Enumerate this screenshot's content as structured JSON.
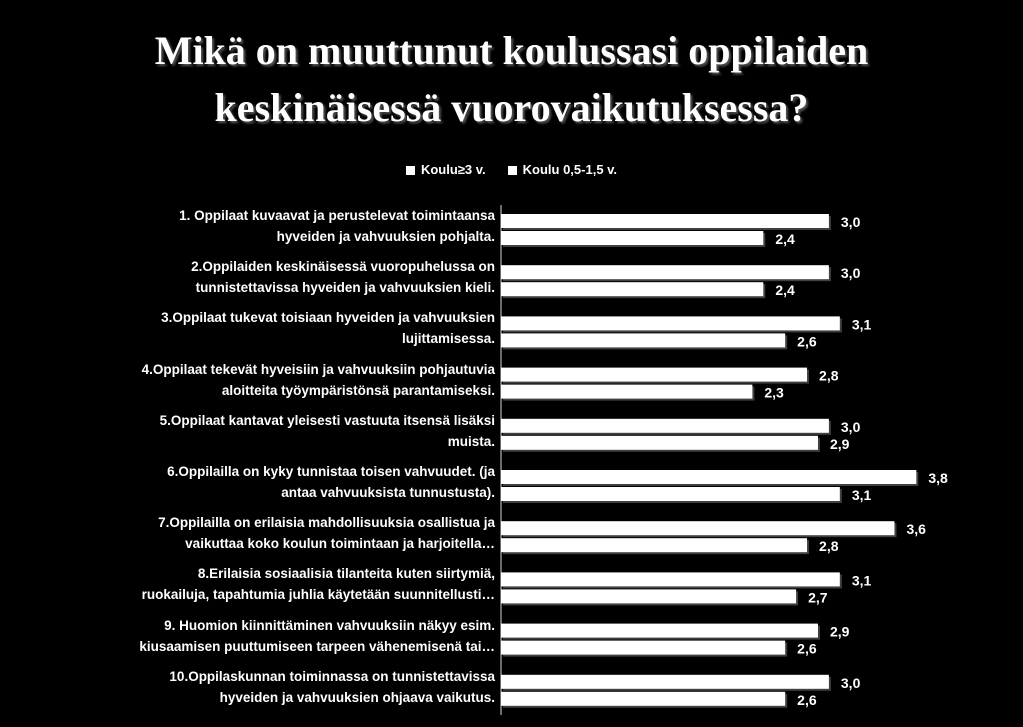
{
  "title_lines": [
    "Mikä on muuttunut koulussasi oppilaiden",
    "keskinäisessä vuorovaikutuksessa?"
  ],
  "chart_data": {
    "type": "bar",
    "orientation": "horizontal",
    "title": "Mikä on muuttunut koulussasi oppilaiden keskinäisessä vuorovaikutuksessa?",
    "legend_position": "top",
    "grid": false,
    "xlim": [
      0,
      4
    ],
    "categories": [
      [
        "1. Oppilaat kuvaavat ja perustelevat toimintaansa",
        "hyveiden ja vahvuuksien pohjalta."
      ],
      [
        "2.Oppilaiden keskinäisessä vuoropuhelussa on",
        "tunnistettavissa hyveiden ja vahvuuksien kieli."
      ],
      [
        "3.Oppilaat tukevat toisiaan hyveiden ja vahvuuksien",
        "lujittamisessa."
      ],
      [
        "4.Oppilaat tekevät hyveisiin ja vahvuuksiin pohjautuvia",
        "aloitteita työympäristönsä parantamiseksi."
      ],
      [
        "5.Oppilaat kantavat yleisesti vastuuta itsensä lisäksi",
        "muista."
      ],
      [
        "6.Oppilailla on kyky tunnistaa toisen vahvuudet. (ja",
        "antaa vahvuuksista tunnustusta)."
      ],
      [
        "7.Oppilailla on erilaisia mahdollisuuksia osallistua ja",
        "vaikuttaa koko koulun toimintaan ja harjoitella…"
      ],
      [
        "8.Erilaisia sosiaalisia tilanteita kuten siirtymiä,",
        "ruokailuja, tapahtumia juhlia käytetään suunnitellusti…"
      ],
      [
        "9. Huomion kiinnittäminen vahvuuksiin näkyy esim.",
        "kiusaamisen puuttumiseen tarpeen vähenemisenä tai…"
      ],
      [
        "10.Oppilaskunnan toiminnassa on tunnistettavissa",
        "hyveiden ja vahvuuksien ohjaava vaikutus."
      ]
    ],
    "series": [
      {
        "name": "Koulu≥3 v.",
        "values": [
          3.0,
          3.0,
          3.1,
          2.8,
          3.0,
          3.8,
          3.6,
          3.1,
          2.9,
          3.0
        ],
        "labels": [
          "3,0",
          "3,0",
          "3,1",
          "2,8",
          "3,0",
          "3,8",
          "3,6",
          "3,1",
          "2,9",
          "3,0"
        ],
        "color": "#ffffff"
      },
      {
        "name": "Koulu 0,5-1,5 v.",
        "values": [
          2.4,
          2.4,
          2.6,
          2.3,
          2.9,
          3.1,
          2.8,
          2.7,
          2.6,
          2.6
        ],
        "labels": [
          "2,4",
          "2,4",
          "2,6",
          "2,3",
          "2,9",
          "3,1",
          "2,8",
          "2,7",
          "2,6",
          "2,6"
        ],
        "color": "#ffffff"
      }
    ]
  }
}
